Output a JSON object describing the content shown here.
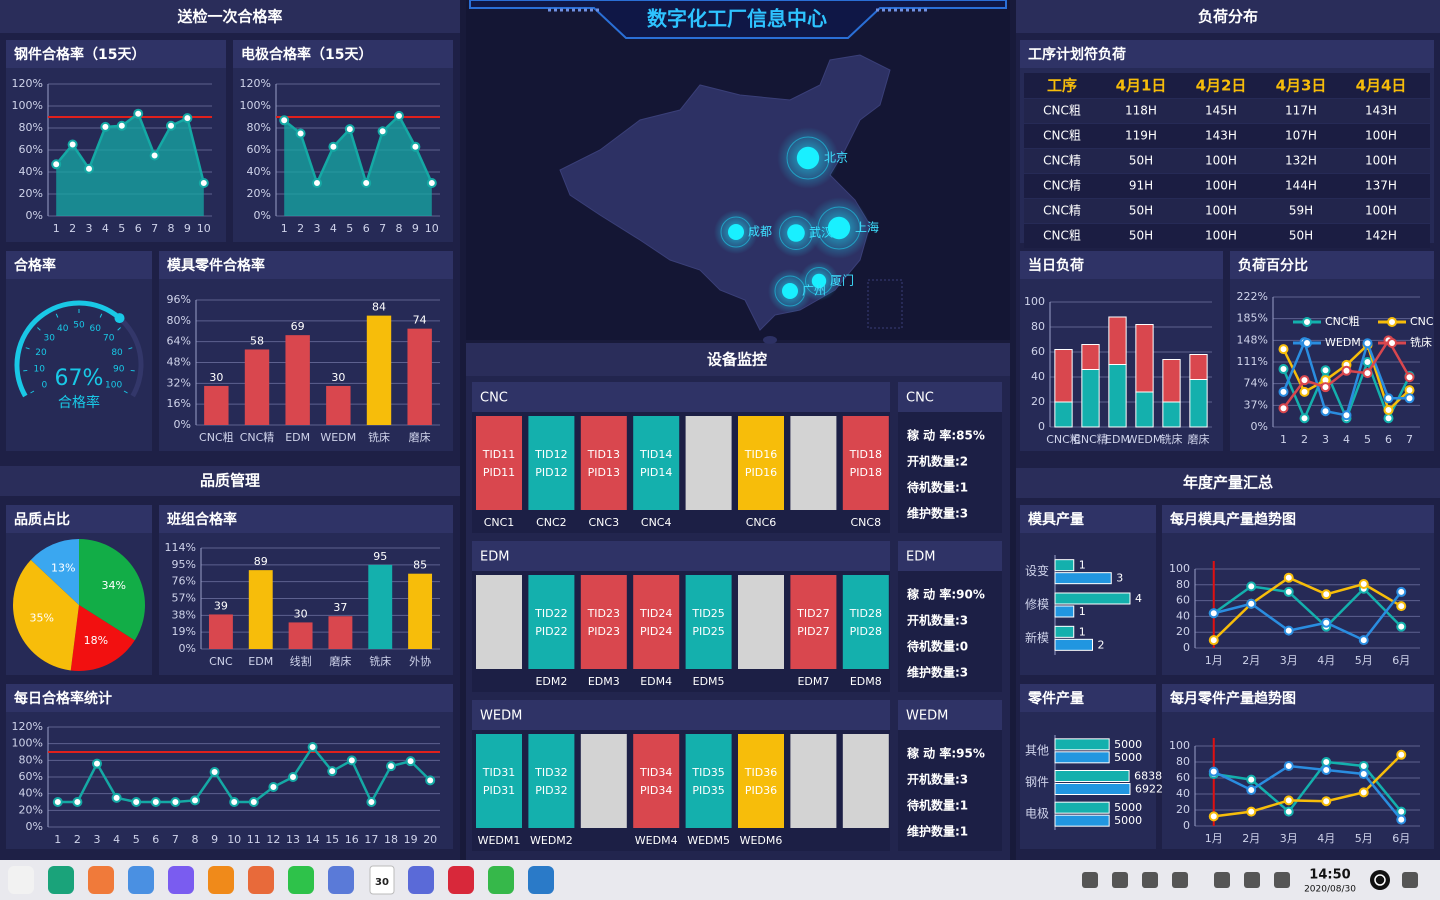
{
  "header": {
    "title": "数字化工厂信息中心"
  },
  "sections": {
    "inspection": "送检一次合格率",
    "quality": "品质管理",
    "equipment": "设备监控",
    "load": "负荷分布",
    "output": "年度产量汇总"
  },
  "charts": [
    {
      "type": "line",
      "title": "钢件合格率（15天）",
      "categories": [
        "1",
        "2",
        "3",
        "4",
        "5",
        "6",
        "7",
        "8",
        "9",
        "10"
      ],
      "values": [
        47,
        65,
        43,
        81,
        82,
        93,
        55,
        82,
        89,
        30
      ],
      "color": "#15a9a5",
      "area": true,
      "threshold": 90,
      "threshold_color": "#e0201c",
      "ylim": [
        0,
        120
      ],
      "yticks": [
        {
          "value": 0,
          "label": "0%"
        },
        {
          "value": 20,
          "label": "20%"
        },
        {
          "value": 40,
          "label": "40%"
        },
        {
          "value": 60,
          "label": "60%"
        },
        {
          "value": 80,
          "label": "80%"
        },
        {
          "value": 100,
          "label": "100%"
        },
        {
          "value": 120,
          "label": "120%"
        }
      ]
    },
    {
      "type": "line",
      "title": "电极合格率（15天）",
      "categories": [
        "1",
        "2",
        "3",
        "4",
        "5",
        "6",
        "7",
        "8",
        "9",
        "10"
      ],
      "values": [
        87,
        75,
        30,
        63,
        79,
        30,
        77,
        91,
        63,
        30
      ],
      "color": "#15a9a5",
      "area": true,
      "threshold": 90,
      "threshold_color": "#e0201c",
      "ylim": [
        0,
        120
      ],
      "yticks": [
        {
          "value": 0,
          "label": "0%"
        },
        {
          "value": 20,
          "label": "20%"
        },
        {
          "value": 40,
          "label": "40%"
        },
        {
          "value": 60,
          "label": "60%"
        },
        {
          "value": 80,
          "label": "80%"
        },
        {
          "value": 100,
          "label": "100%"
        },
        {
          "value": 120,
          "label": "120%"
        }
      ]
    },
    {
      "type": "gauge",
      "title": "合格率",
      "value": 67,
      "value_label": "67%",
      "label": "合格率",
      "range": [
        0,
        100
      ],
      "ticks": [
        0,
        10,
        20,
        30,
        40,
        50,
        60,
        70,
        80,
        90,
        100
      ],
      "color": "#19c8e6"
    },
    {
      "type": "bar",
      "title": "模具零件合格率",
      "categories": [
        "CNC粗",
        "CNC精",
        "EDM",
        "WEDM",
        "铣床",
        "磨床"
      ],
      "values": [
        30,
        58,
        69,
        30,
        84,
        74
      ],
      "colors": [
        "#d9474e",
        "#d9474e",
        "#d9474e",
        "#d9474e",
        "#f7bd0a",
        "#d9474e"
      ],
      "ylim": [
        0,
        96
      ],
      "yticks": [
        {
          "value": 0,
          "label": "0%"
        },
        {
          "value": 16,
          "label": "16%"
        },
        {
          "value": 32,
          "label": "32%"
        },
        {
          "value": 48,
          "label": "48%"
        },
        {
          "value": 64,
          "label": "64%"
        },
        {
          "value": 80,
          "label": "80%"
        },
        {
          "value": 96,
          "label": "96%"
        }
      ]
    },
    {
      "type": "pie",
      "title": "品质占比",
      "values": [
        34,
        18,
        35,
        13
      ],
      "value_labels": [
        "34%",
        "18%",
        "35%",
        "13%"
      ],
      "colors": [
        "#12ad47",
        "#f21010",
        "#f7bd0a",
        "#3aa7f0"
      ]
    },
    {
      "type": "bar",
      "title": "班组合格率",
      "categories": [
        "CNC",
        "EDM",
        "线割",
        "磨床",
        "铣床",
        "外协"
      ],
      "values": [
        39,
        89,
        30,
        37,
        95,
        85
      ],
      "colors": [
        "#d9474e",
        "#f7bd0a",
        "#d9474e",
        "#d9474e",
        "#14b0ad",
        "#f7bd0a"
      ],
      "ylim": [
        0,
        114
      ],
      "yticks": [
        {
          "value": 0,
          "label": "0%"
        },
        {
          "value": 19,
          "label": "19%"
        },
        {
          "value": 38,
          "label": "38%"
        },
        {
          "value": 57,
          "label": "57%"
        },
        {
          "value": 76,
          "label": "76%"
        },
        {
          "value": 95,
          "label": "95%"
        },
        {
          "value": 114,
          "label": "114%"
        }
      ]
    },
    {
      "type": "line",
      "title": "每日合格率统计",
      "categories": [
        "1",
        "2",
        "3",
        "4",
        "5",
        "6",
        "7",
        "8",
        "9",
        "10",
        "11",
        "12",
        "13",
        "14",
        "15",
        "16",
        "17",
        "18",
        "19",
        "20"
      ],
      "values": [
        30,
        30,
        76,
        35,
        30,
        30,
        30,
        32,
        66,
        30,
        30,
        48,
        60,
        96,
        67,
        80,
        30,
        73,
        79,
        56
      ],
      "color": "#15a9a5",
      "threshold": 90,
      "threshold_color": "#e0201c",
      "ylim": [
        0,
        120
      ],
      "yticks": [
        {
          "value": 0,
          "label": "0%"
        },
        {
          "value": 20,
          "label": "20%"
        },
        {
          "value": 40,
          "label": "40%"
        },
        {
          "value": 60,
          "label": "60%"
        },
        {
          "value": 80,
          "label": "80%"
        },
        {
          "value": 100,
          "label": "100%"
        },
        {
          "value": 120,
          "label": "120%"
        }
      ]
    },
    {
      "type": "table",
      "title": "工序计划符负荷",
      "header": [
        "工序",
        "4月1日",
        "4月2日",
        "4月3日",
        "4月4日"
      ],
      "rows": [
        [
          "CNC粗",
          "118H",
          "145H",
          "117H",
          "143H"
        ],
        [
          "CNC粗",
          "119H",
          "143H",
          "107H",
          "100H"
        ],
        [
          "CNC精",
          "50H",
          "100H",
          "132H",
          "100H"
        ],
        [
          "CNC精",
          "91H",
          "100H",
          "144H",
          "137H"
        ],
        [
          "CNC精",
          "50H",
          "100H",
          "59H",
          "100H"
        ],
        [
          "CNC粗",
          "50H",
          "100H",
          "50H",
          "142H"
        ]
      ]
    },
    {
      "type": "stacked_bar",
      "title": "当日负荷",
      "categories": [
        "CNC粗",
        "CNC精",
        "EDM",
        "WEDM",
        "铣床",
        "磨床"
      ],
      "series": [
        {
          "color": "#14b0ad",
          "values": [
            20,
            46,
            50,
            28,
            20,
            38
          ]
        },
        {
          "color": "#d9474e",
          "values": [
            42,
            20,
            38,
            54,
            34,
            20
          ]
        }
      ],
      "ylim": [
        0,
        100
      ],
      "yticks": [
        0,
        20,
        40,
        60,
        80,
        100
      ]
    },
    {
      "type": "line",
      "title": "负荷百分比",
      "categories": [
        "1",
        "2",
        "3",
        "4",
        "5",
        "6",
        "7"
      ],
      "series": [
        {
          "name": "CNC粗",
          "color": "#14b0ad",
          "values": [
            99,
            15,
            97,
            15,
            111,
            15,
            87
          ]
        },
        {
          "name": "CNC精",
          "color": "#f7bd0a",
          "values": [
            133,
            60,
            80,
            106,
            140,
            29,
            63
          ]
        },
        {
          "name": "WEDM",
          "color": "#2a8de0",
          "values": [
            60,
            145,
            27,
            20,
            143,
            49,
            49
          ]
        },
        {
          "name": "铣床",
          "color": "#d9474e",
          "values": [
            32,
            80,
            68,
            96,
            92,
            148,
            85
          ]
        }
      ],
      "legend": true,
      "ylim": [
        0,
        222
      ],
      "yticks": [
        {
          "value": 0,
          "label": "0%"
        },
        {
          "value": 37,
          "label": "37%"
        },
        {
          "value": 74,
          "label": "74%"
        },
        {
          "value": 111,
          "label": "111%"
        },
        {
          "value": 148,
          "label": "148%"
        },
        {
          "value": 185,
          "label": "185%"
        },
        {
          "value": 222,
          "label": "222%"
        }
      ]
    },
    {
      "type": "hbar",
      "title": "模具产量",
      "categories": [
        "设变",
        "修模",
        "新模"
      ],
      "series": [
        {
          "color": "#14b0ad",
          "values": [
            1,
            4,
            1
          ]
        },
        {
          "color": "#2196e0",
          "values": [
            3,
            1,
            2
          ]
        }
      ]
    },
    {
      "type": "line",
      "title": "每月模具产量趋势图",
      "categories": [
        "1月",
        "2月",
        "3月",
        "4月",
        "5月",
        "6月"
      ],
      "series": [
        {
          "color": "#14b0ad",
          "values": [
            44,
            78,
            71,
            27,
            75,
            27
          ]
        },
        {
          "color": "#f7bd0a",
          "values": [
            10,
            56,
            89,
            68,
            81,
            53
          ]
        },
        {
          "color": "#2a8de0",
          "values": [
            44,
            56,
            22,
            32,
            10,
            71
          ]
        }
      ],
      "marker_color": "#e01010",
      "ylim": [
        0,
        100
      ],
      "yticks": [
        0,
        20,
        40,
        60,
        80,
        100
      ]
    },
    {
      "type": "hbar",
      "title": "零件产量",
      "categories": [
        "其他",
        "钢件",
        "电极"
      ],
      "series": [
        {
          "color": "#14b0ad",
          "values": [
            5000,
            6838,
            5000
          ]
        },
        {
          "color": "#2196e0",
          "values": [
            5000,
            6922,
            5000
          ]
        }
      ]
    },
    {
      "type": "line",
      "title": "每月零件产量趋势图",
      "categories": [
        "1月",
        "2月",
        "3月",
        "4月",
        "5月",
        "6月"
      ],
      "series": [
        {
          "color": "#14b0ad",
          "values": [
            65,
            58,
            18,
            80,
            75,
            18
          ]
        },
        {
          "color": "#f7bd0a",
          "values": [
            12,
            18,
            32,
            31,
            42,
            89
          ]
        },
        {
          "color": "#2a8de0",
          "values": [
            68,
            45,
            75,
            70,
            65,
            8
          ]
        }
      ],
      "marker_color": "#e01010",
      "ylim": [
        0,
        100
      ],
      "yticks": [
        0,
        20,
        40,
        60,
        80,
        100
      ]
    }
  ],
  "map": {
    "cities": [
      "北京",
      "成都",
      "武汉",
      "上海",
      "厦门",
      "广州"
    ]
  },
  "equipment": {
    "groups": [
      {
        "name": "CNC",
        "tiles": [
          {
            "tid": "TID11",
            "pid": "PID11",
            "label": "CNC1",
            "color": "#d9474e"
          },
          {
            "tid": "TID12",
            "pid": "PID12",
            "label": "CNC2",
            "color": "#14b0ad"
          },
          {
            "tid": "TID13",
            "pid": "PID13",
            "label": "CNC3",
            "color": "#d9474e"
          },
          {
            "tid": "TID14",
            "pid": "PID14",
            "label": "CNC4",
            "color": "#14b0ad"
          },
          {
            "color": "#d3d3d3"
          },
          {
            "tid": "TID16",
            "pid": "PID16",
            "label": "CNC6",
            "color": "#f7bd0a"
          },
          {
            "color": "#d3d3d3"
          },
          {
            "tid": "TID18",
            "pid": "PID18",
            "label": "CNC8",
            "color": "#d9474e"
          }
        ],
        "stats": [
          "稼 动 率:85%",
          "开机数量:2",
          "待机数量:1",
          "维护数量:3"
        ]
      },
      {
        "name": "EDM",
        "tiles": [
          {
            "color": "#d3d3d3"
          },
          {
            "tid": "TID22",
            "pid": "PID22",
            "label": "EDM2",
            "color": "#14b0ad"
          },
          {
            "tid": "TID23",
            "pid": "PID23",
            "label": "EDM3",
            "color": "#d9474e"
          },
          {
            "tid": "TID24",
            "pid": "PID24",
            "label": "EDM4",
            "color": "#d9474e"
          },
          {
            "tid": "TID25",
            "pid": "PID25",
            "label": "EDM5",
            "color": "#14b0ad"
          },
          {
            "color": "#d3d3d3"
          },
          {
            "tid": "TID27",
            "pid": "PID27",
            "label": "EDM7",
            "color": "#d9474e"
          },
          {
            "tid": "TID28",
            "pid": "PID28",
            "label": "EDM8",
            "color": "#14b0ad"
          }
        ],
        "stats": [
          "稼 动 率:90%",
          "开机数量:3",
          "待机数量:0",
          "维护数量:3"
        ]
      },
      {
        "name": "WEDM",
        "tiles": [
          {
            "tid": "TID31",
            "pid": "PID31",
            "label": "WEDM1",
            "color": "#14b0ad"
          },
          {
            "tid": "TID32",
            "pid": "PID32",
            "label": "WEDM2",
            "color": "#14b0ad"
          },
          {
            "color": "#d3d3d3"
          },
          {
            "tid": "TID34",
            "pid": "PID34",
            "label": "WEDM4",
            "color": "#d9474e"
          },
          {
            "tid": "TID35",
            "pid": "PID35",
            "label": "WEDM5",
            "color": "#14b0ad"
          },
          {
            "tid": "TID36",
            "pid": "PID36",
            "label": "WEDM6",
            "color": "#f7bd0a"
          },
          {
            "color": "#d3d3d3"
          },
          {
            "color": "#d3d3d3"
          }
        ],
        "stats": [
          "稼 动 率:95%",
          "开机数量:3",
          "待机数量:1",
          "维护数量:1"
        ]
      }
    ]
  },
  "taskbar": {
    "calendar_day": "30",
    "time": "14:50",
    "date": "2020/08/30"
  }
}
